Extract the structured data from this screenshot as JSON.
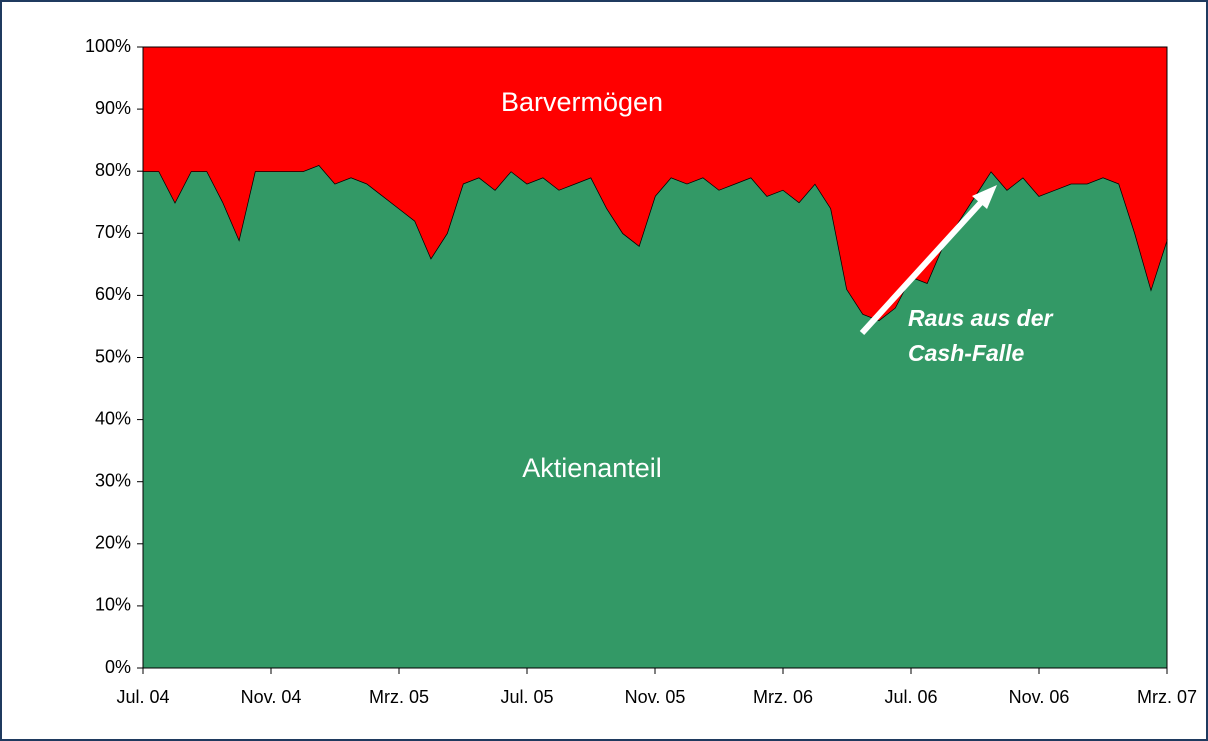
{
  "chart_data": {
    "type": "stacked_area",
    "categories": [
      "Jul. 04",
      null,
      null,
      null,
      null,
      null,
      null,
      null,
      "Nov. 04",
      null,
      null,
      null,
      null,
      null,
      null,
      null,
      "Mrz. 05",
      null,
      null,
      null,
      null,
      null,
      null,
      null,
      "Jul. 05",
      null,
      null,
      null,
      null,
      null,
      null,
      null,
      "Nov. 05",
      null,
      null,
      null,
      null,
      null,
      null,
      null,
      "Mrz. 06",
      null,
      null,
      null,
      null,
      null,
      null,
      null,
      "Jul. 06",
      null,
      null,
      null,
      null,
      null,
      null,
      null,
      "Nov. 06",
      null,
      null,
      null,
      null,
      null,
      null,
      null,
      "Mrz. 07"
    ],
    "series": [
      {
        "name": "Aktienanteil",
        "color": "#339966",
        "values": [
          80,
          80,
          75,
          80,
          80,
          75,
          69,
          80,
          80,
          80,
          80,
          81,
          78,
          79,
          78,
          76,
          74,
          72,
          66,
          70,
          78,
          79,
          77,
          80,
          78,
          79,
          77,
          78,
          79,
          74,
          70,
          68,
          76,
          79,
          78,
          79,
          77,
          78,
          79,
          76,
          77,
          75,
          78,
          74,
          61,
          57,
          56,
          58,
          63,
          62,
          68,
          72,
          76,
          80,
          77,
          79,
          76,
          77,
          78,
          78,
          79,
          78,
          70,
          61,
          69
        ]
      },
      {
        "name": "Barvermögen",
        "color": "#ff0000",
        "values": [
          20,
          20,
          25,
          20,
          20,
          25,
          31,
          20,
          20,
          20,
          20,
          19,
          22,
          21,
          22,
          24,
          26,
          28,
          34,
          30,
          22,
          21,
          23,
          20,
          22,
          21,
          23,
          22,
          21,
          26,
          30,
          32,
          24,
          21,
          22,
          21,
          23,
          22,
          21,
          24,
          23,
          25,
          22,
          26,
          39,
          43,
          44,
          42,
          37,
          38,
          32,
          28,
          24,
          20,
          23,
          21,
          24,
          23,
          22,
          22,
          21,
          22,
          30,
          39,
          31
        ]
      }
    ],
    "ylim": [
      0,
      100
    ],
    "yticks": [
      {
        "value": 0,
        "label": "0%"
      },
      {
        "value": 10,
        "label": "10%"
      },
      {
        "value": 20,
        "label": "20%"
      },
      {
        "value": 30,
        "label": "30%"
      },
      {
        "value": 40,
        "label": "40%"
      },
      {
        "value": 50,
        "label": "50%"
      },
      {
        "value": 60,
        "label": "60%"
      },
      {
        "value": 70,
        "label": "70%"
      },
      {
        "value": 80,
        "label": "80%"
      },
      {
        "value": 90,
        "label": "90%"
      },
      {
        "value": 100,
        "label": "100%"
      }
    ],
    "annotations": [
      "Raus aus der",
      "Cash-Falle"
    ]
  }
}
